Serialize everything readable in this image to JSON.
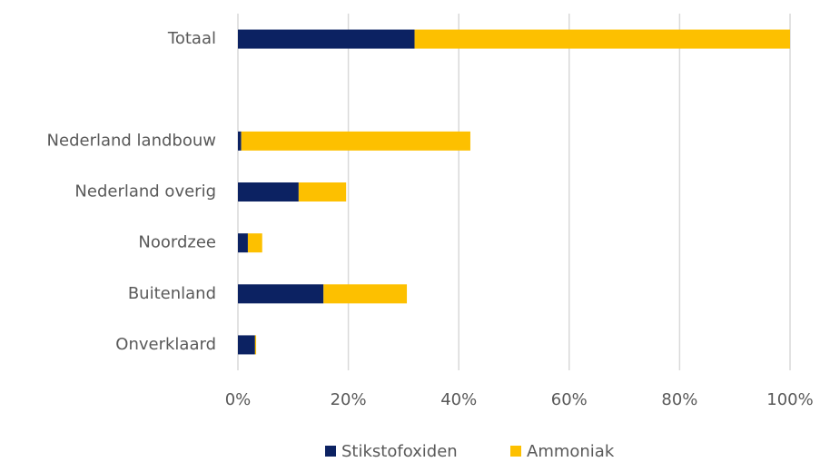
{
  "chart_data": {
    "type": "stacked-barh",
    "categories": [
      "Totaal",
      null,
      "Nederland landbouw",
      "Nederland overig",
      "Noordzee",
      "Buitenland",
      "Onverklaard"
    ],
    "series": [
      {
        "name": "Stikstofoxiden",
        "color": "#0c2262",
        "values": [
          32,
          null,
          0.6,
          11,
          1.8,
          15.5,
          3.1
        ]
      },
      {
        "name": "Ammoniak",
        "color": "#fdc000",
        "values": [
          68,
          null,
          41.5,
          8.6,
          2.6,
          15.1,
          0.2
        ]
      }
    ],
    "xlim": [
      0,
      100
    ],
    "xticks": [
      {
        "value": 0,
        "label": "0%"
      },
      {
        "value": 20,
        "label": "20%"
      },
      {
        "value": 40,
        "label": "40%"
      },
      {
        "value": 60,
        "label": "60%"
      },
      {
        "value": 80,
        "label": "80%"
      },
      {
        "value": 100,
        "label": "100%"
      }
    ],
    "grid": true,
    "legend": "bottom"
  }
}
